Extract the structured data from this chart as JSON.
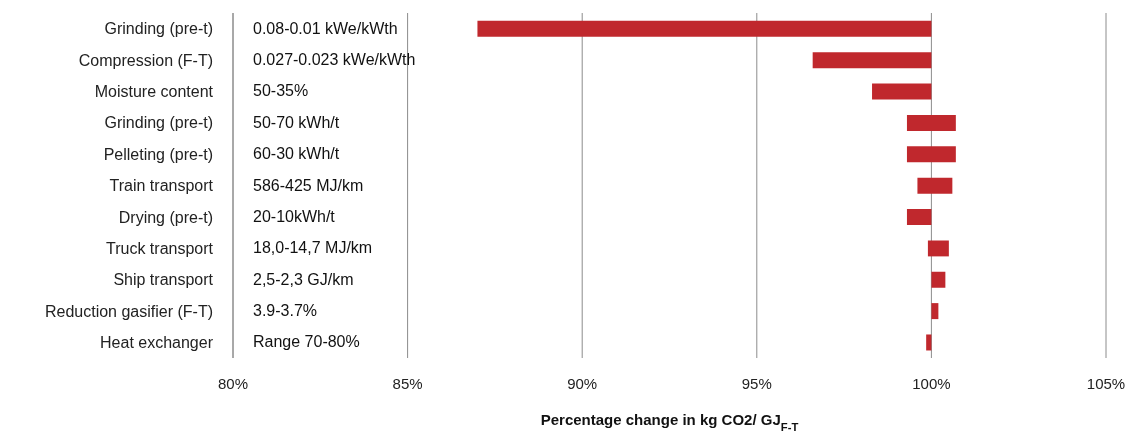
{
  "chart_data": {
    "type": "bar",
    "orientation": "horizontal",
    "xlabel": "Percentage change in kg CO2/ GJ$_{F-T}$",
    "categories": [
      "Grinding (pre-t)",
      "Compression (F-T)",
      "Moisture content",
      "Grinding (pre-t)",
      "Pelleting (pre-t)",
      "Train transport",
      "Drying (pre-t)",
      "Truck transport",
      "Ship transport",
      "Reduction gasifier (F-T)",
      "Heat exchanger"
    ],
    "base": [
      87.0,
      96.6,
      98.3,
      99.3,
      99.3,
      99.6,
      99.3,
      99.9,
      100,
      100,
      99.85
    ],
    "values": [
      13.0,
      3.4,
      1.7,
      1.4,
      1.4,
      1.0,
      0.7,
      0.6,
      0.4,
      0.2,
      0.15
    ],
    "color": "#c0282d",
    "xlim": [
      80,
      105
    ],
    "xticks": [
      {
        "value": 80,
        "label": "80%"
      },
      {
        "value": 85,
        "label": "85%"
      },
      {
        "value": 90,
        "label": "90%"
      },
      {
        "value": 95,
        "label": "95%"
      },
      {
        "value": 100,
        "label": "100%"
      },
      {
        "value": 105,
        "label": "105%"
      }
    ],
    "grid": "x",
    "annotations": [
      "0.08-0.01 kWe/kWth",
      "0.027-0.023 kWe/kWth",
      "50-35%",
      "50-70 kWh/t",
      "60-30 kWh/t",
      "586-425 MJ/km",
      "20-10kWh/t",
      "18,0-14,7 MJ/km",
      "2,5-2,3 GJ/km",
      "3.9-3.7%",
      "Range 70-80%"
    ]
  }
}
